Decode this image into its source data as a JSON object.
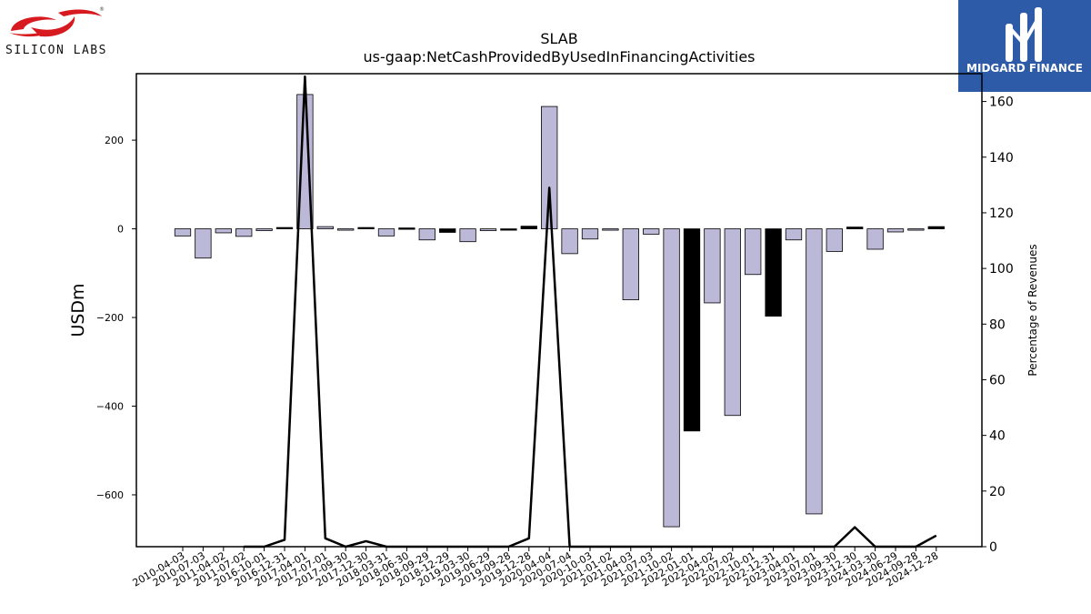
{
  "logos": {
    "left_text": "SILICON LABS",
    "right_text": "MIDGARD FINANCE",
    "reg_mark": "®"
  },
  "chart_data": {
    "type": "bar",
    "title": "SLAB",
    "subtitle": "us-gaap:NetCashProvidedByUsedInFinancingActivities",
    "ylabel": "USDm",
    "y2label": "Percentage of Revenues",
    "ylim": [
      -717,
      350
    ],
    "y2lim": [
      0,
      170
    ],
    "yticks": [
      -600,
      -400,
      -200,
      0,
      200
    ],
    "y2ticks": [
      0,
      20,
      40,
      60,
      80,
      100,
      120,
      140,
      160
    ],
    "categories": [
      "2010-04-03",
      "2010-07-03",
      "2011-04-02",
      "2011-07-02",
      "2016-10-01",
      "2016-12-31",
      "2017-04-01",
      "2017-07-01",
      "2017-09-30",
      "2017-12-30",
      "2018-03-31",
      "2018-06-30",
      "2018-09-29",
      "2018-12-29",
      "2019-03-30",
      "2019-06-29",
      "2019-09-28",
      "2019-12-28",
      "2020-04-04",
      "2020-07-04",
      "2020-10-03",
      "2021-01-02",
      "2021-04-03",
      "2021-07-03",
      "2021-10-02",
      "2022-01-01",
      "2022-04-02",
      "2022-07-02",
      "2022-10-01",
      "2022-12-31",
      "2023-04-01",
      "2023-07-01",
      "2023-09-30",
      "2023-12-30",
      "2024-03-30",
      "2024-06-29",
      "2024-09-28",
      "2024-12-28"
    ],
    "series": [
      {
        "values": [
          -16,
          -66,
          -9,
          -17,
          -4,
          3,
          303,
          5,
          -1,
          3,
          -16,
          2,
          -25,
          -8,
          -29,
          -4,
          -2,
          6,
          276,
          -56,
          -23,
          -1,
          -160,
          -12,
          -672,
          -456,
          -167,
          -421,
          -103,
          -197,
          -25,
          -643,
          -51,
          4,
          -46,
          -7,
          -1,
          5
        ],
        "highlight": [
          false,
          false,
          false,
          false,
          false,
          true,
          false,
          false,
          false,
          true,
          false,
          true,
          false,
          true,
          false,
          false,
          true,
          true,
          false,
          false,
          false,
          false,
          false,
          false,
          false,
          true,
          false,
          false,
          false,
          true,
          false,
          false,
          false,
          true,
          false,
          false,
          false,
          true
        ],
        "color": "#bcb8d8",
        "highlight_color": "#000000"
      },
      {
        "type": "line",
        "axis": "right",
        "color": "#000000",
        "points": [
          {
            "x": "2011-07-02",
            "y": 0
          },
          {
            "x": "2016-10-01",
            "y": 0
          },
          {
            "x": "2016-12-31",
            "y": 2.5
          },
          {
            "x": "2017-04-01",
            "y": 169
          },
          {
            "x": "2017-07-01",
            "y": 3
          },
          {
            "x": "2017-09-30",
            "y": 0
          },
          {
            "x": "2017-12-30",
            "y": 2
          },
          {
            "x": "2018-03-31",
            "y": 0
          },
          {
            "x": "2019-06-29",
            "y": 0
          },
          {
            "x": "2019-09-28",
            "y": 0
          },
          {
            "x": "2019-12-28",
            "y": 3
          },
          {
            "x": "2020-04-04",
            "y": 129
          },
          {
            "x": "2020-07-04",
            "y": 0
          },
          {
            "x": "2023-09-30",
            "y": 0
          },
          {
            "x": "2023-12-30",
            "y": 7
          },
          {
            "x": "2024-03-30",
            "y": 0
          },
          {
            "x": "2024-09-28",
            "y": 0
          },
          {
            "x": "2024-12-28",
            "y": 4
          }
        ]
      }
    ]
  }
}
